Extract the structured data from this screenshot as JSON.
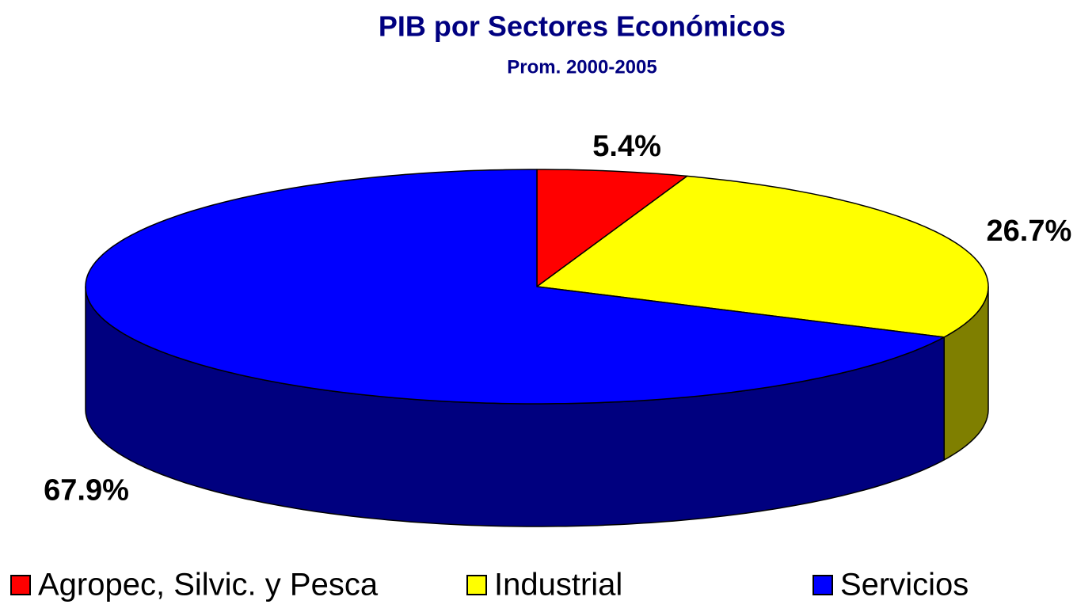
{
  "chart_data": {
    "type": "pie",
    "title": "PIB por Sectores Económicos",
    "subtitle": "Prom. 2000-2005",
    "categories": [
      "Agropec, Silvic. y Pesca",
      "Industrial",
      "Servicios"
    ],
    "values": [
      5.4,
      26.7,
      67.9
    ],
    "value_labels": [
      "5.4%",
      "26.7%",
      "67.9%"
    ],
    "colors": [
      "#ff0000",
      "#ffff00",
      "#0000ff"
    ],
    "legend": "bottom"
  }
}
